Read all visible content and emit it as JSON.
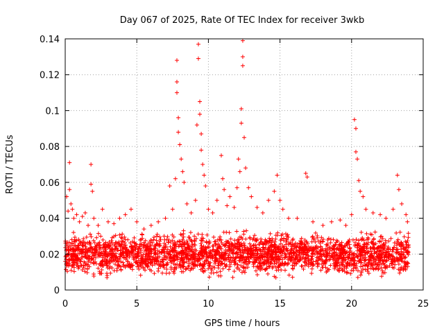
{
  "chart_data": {
    "type": "scatter",
    "title": "Day 067 of 2025, Rate Of TEC Index for receiver 3wkb",
    "xlabel": "GPS time / hours",
    "ylabel": "ROTI / TECUs",
    "xlim": [
      0,
      25
    ],
    "ylim": [
      0,
      0.14
    ],
    "xticks": [
      0,
      5,
      10,
      15,
      20,
      25
    ],
    "xtick_labels": [
      "0",
      "5",
      "10",
      "15",
      "20",
      "25"
    ],
    "yticks": [
      0,
      0.02,
      0.04,
      0.06,
      0.08,
      0.1,
      0.12,
      0.14
    ],
    "ytick_labels": [
      "0",
      "0.02",
      "0.04",
      "0.06",
      "0.08",
      "0.1",
      "0.12",
      "0.14"
    ],
    "grid": true,
    "marker": "+",
    "color": "#ff0000",
    "background_band": {
      "x_start": 0,
      "x_end": 24,
      "y_low": 0.005,
      "y_high": 0.035
    },
    "series": [
      {
        "values_xy": [
          [
            0.1,
            0.052
          ],
          [
            0.2,
            0.044
          ],
          [
            0.3,
            0.071
          ],
          [
            0.3,
            0.056
          ],
          [
            0.4,
            0.048
          ],
          [
            0.5,
            0.045
          ],
          [
            0.6,
            0.04
          ],
          [
            0.8,
            0.042
          ],
          [
            1.0,
            0.038
          ],
          [
            1.2,
            0.041
          ],
          [
            1.4,
            0.043
          ],
          [
            1.6,
            0.036
          ],
          [
            1.8,
            0.07
          ],
          [
            1.8,
            0.059
          ],
          [
            1.9,
            0.055
          ],
          [
            2.0,
            0.04
          ],
          [
            2.3,
            0.036
          ],
          [
            2.6,
            0.045
          ],
          [
            3.0,
            0.038
          ],
          [
            3.4,
            0.037
          ],
          [
            3.8,
            0.04
          ],
          [
            4.2,
            0.042
          ],
          [
            4.6,
            0.045
          ],
          [
            5.0,
            0.038
          ],
          [
            5.5,
            0.034
          ],
          [
            6.0,
            0.036
          ],
          [
            6.5,
            0.038
          ],
          [
            7.0,
            0.04
          ],
          [
            7.3,
            0.058
          ],
          [
            7.5,
            0.045
          ],
          [
            7.7,
            0.062
          ],
          [
            7.8,
            0.128
          ],
          [
            7.8,
            0.116
          ],
          [
            7.8,
            0.11
          ],
          [
            7.9,
            0.096
          ],
          [
            7.9,
            0.088
          ],
          [
            8.0,
            0.081
          ],
          [
            8.1,
            0.073
          ],
          [
            8.2,
            0.066
          ],
          [
            8.3,
            0.06
          ],
          [
            8.5,
            0.048
          ],
          [
            8.8,
            0.043
          ],
          [
            9.1,
            0.05
          ],
          [
            9.2,
            0.092
          ],
          [
            9.3,
            0.137
          ],
          [
            9.3,
            0.129
          ],
          [
            9.4,
            0.105
          ],
          [
            9.4,
            0.098
          ],
          [
            9.5,
            0.087
          ],
          [
            9.5,
            0.078
          ],
          [
            9.6,
            0.07
          ],
          [
            9.7,
            0.064
          ],
          [
            9.8,
            0.058
          ],
          [
            10.0,
            0.045
          ],
          [
            10.3,
            0.043
          ],
          [
            10.6,
            0.05
          ],
          [
            10.9,
            0.075
          ],
          [
            11.0,
            0.062
          ],
          [
            11.1,
            0.056
          ],
          [
            11.3,
            0.047
          ],
          [
            11.5,
            0.052
          ],
          [
            11.8,
            0.046
          ],
          [
            12.0,
            0.057
          ],
          [
            12.1,
            0.073
          ],
          [
            12.2,
            0.066
          ],
          [
            12.3,
            0.093
          ],
          [
            12.3,
            0.101
          ],
          [
            12.4,
            0.139
          ],
          [
            12.4,
            0.13
          ],
          [
            12.4,
            0.125
          ],
          [
            12.5,
            0.085
          ],
          [
            12.6,
            0.068
          ],
          [
            12.8,
            0.057
          ],
          [
            13.0,
            0.052
          ],
          [
            13.4,
            0.046
          ],
          [
            13.8,
            0.043
          ],
          [
            14.2,
            0.05
          ],
          [
            14.6,
            0.055
          ],
          [
            14.8,
            0.064
          ],
          [
            15.0,
            0.05
          ],
          [
            15.2,
            0.045
          ],
          [
            15.6,
            0.04
          ],
          [
            16.2,
            0.04
          ],
          [
            16.8,
            0.065
          ],
          [
            16.9,
            0.063
          ],
          [
            17.3,
            0.038
          ],
          [
            18.0,
            0.036
          ],
          [
            18.6,
            0.038
          ],
          [
            19.2,
            0.039
          ],
          [
            19.6,
            0.036
          ],
          [
            20.0,
            0.042
          ],
          [
            20.2,
            0.095
          ],
          [
            20.3,
            0.09
          ],
          [
            20.3,
            0.077
          ],
          [
            20.4,
            0.073
          ],
          [
            20.5,
            0.061
          ],
          [
            20.6,
            0.055
          ],
          [
            20.8,
            0.052
          ],
          [
            21.0,
            0.045
          ],
          [
            21.5,
            0.043
          ],
          [
            22.0,
            0.042
          ],
          [
            22.4,
            0.04
          ],
          [
            22.9,
            0.045
          ],
          [
            23.2,
            0.064
          ],
          [
            23.3,
            0.056
          ],
          [
            23.5,
            0.048
          ],
          [
            23.8,
            0.042
          ],
          [
            23.9,
            0.038
          ]
        ]
      }
    ]
  }
}
